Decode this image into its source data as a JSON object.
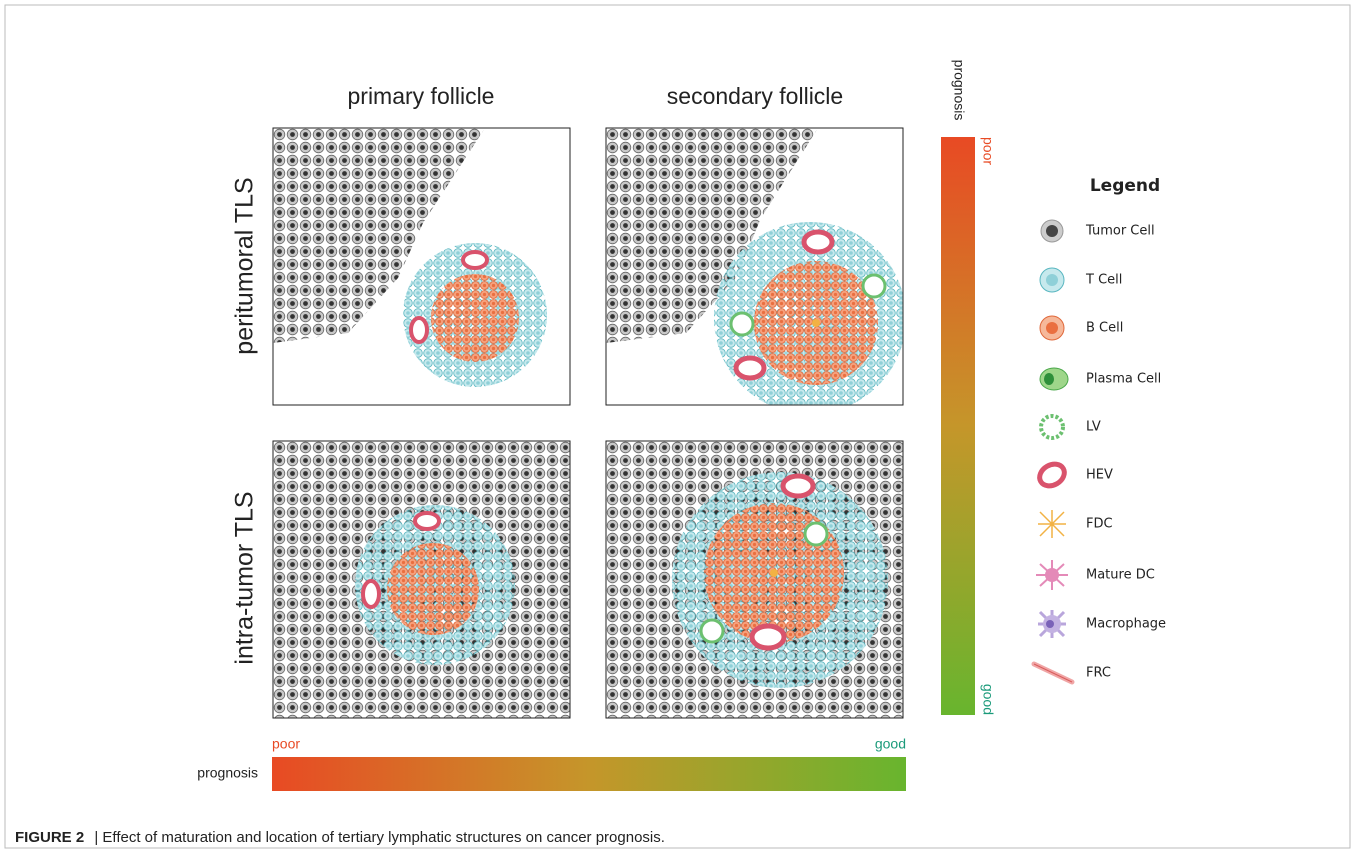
{
  "columns": [
    "primary follicle",
    "secondary follicle"
  ],
  "rows": [
    "peritumoral TLS",
    "intra-tumor  TLS"
  ],
  "vertical_scale": {
    "title": "prognosis",
    "top": "poor",
    "bottom": "good"
  },
  "horizontal_scale": {
    "title": "prognosis",
    "left": "poor",
    "right": "good"
  },
  "legend": {
    "title": "Legend",
    "items": [
      "Tumor Cell",
      "T Cell",
      "B Cell",
      "Plasma Cell",
      "LV",
      "HEV",
      "FDC",
      "Mature DC",
      "Macrophage",
      "FRC"
    ]
  },
  "caption": {
    "label": "FIGURE 2",
    "text": "| Effect of maturation and location of tertiary lymphatic structures on cancer prognosis."
  }
}
